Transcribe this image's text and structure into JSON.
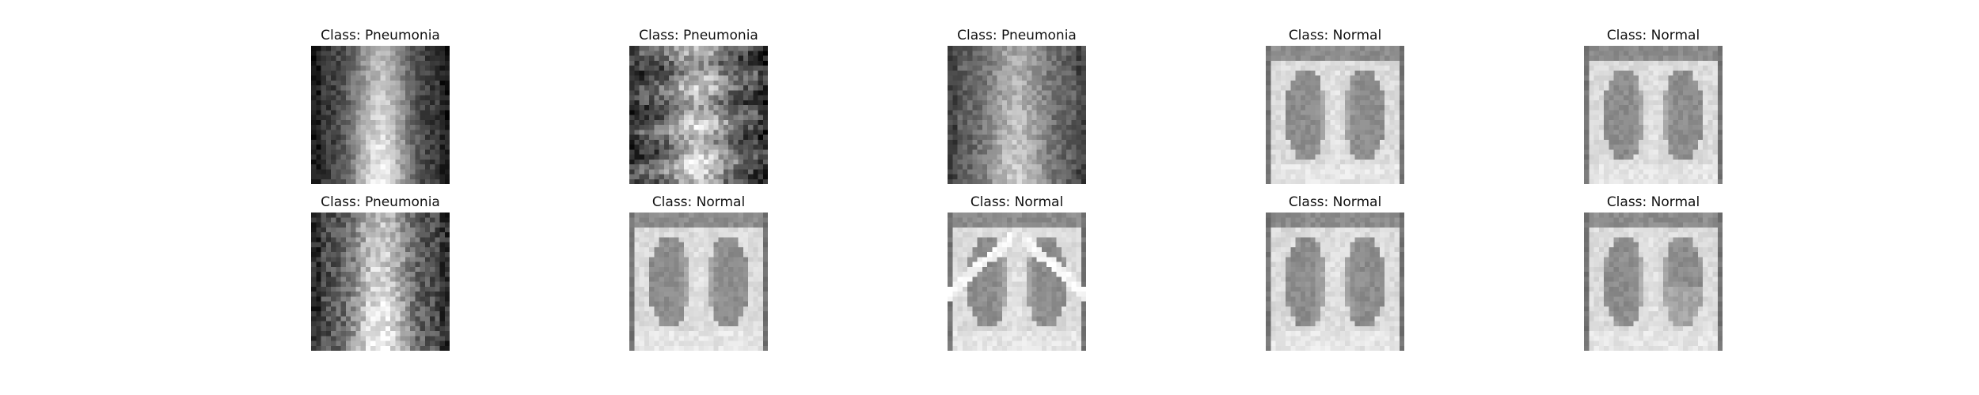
{
  "figure": {
    "background": "#ffffff",
    "panels": [
      {
        "title": "Class: Pneumonia",
        "image": "chest-xray-pneumonia-diffuse-opacity"
      },
      {
        "title": "Class: Pneumonia",
        "image": "chest-xray-pneumonia-hazy-streaks"
      },
      {
        "title": "Class: Pneumonia",
        "image": "chest-xray-pneumonia-hazy-fields"
      },
      {
        "title": "Class: Normal",
        "image": "chest-xray-normal-clear-lungs"
      },
      {
        "title": "Class: Normal",
        "image": "chest-xray-normal-clear-lungs"
      },
      {
        "title": "Class: Pneumonia",
        "image": "chest-xray-pneumonia-bright-fields"
      },
      {
        "title": "Class: Normal",
        "image": "chest-xray-normal-clear-lungs"
      },
      {
        "title": "Class: Normal",
        "image": "chest-xray-normal-clavicles-visible"
      },
      {
        "title": "Class: Normal",
        "image": "chest-xray-normal-clear-lungs"
      },
      {
        "title": "Class: Normal",
        "image": "chest-xray-normal-partial-haze"
      }
    ]
  }
}
